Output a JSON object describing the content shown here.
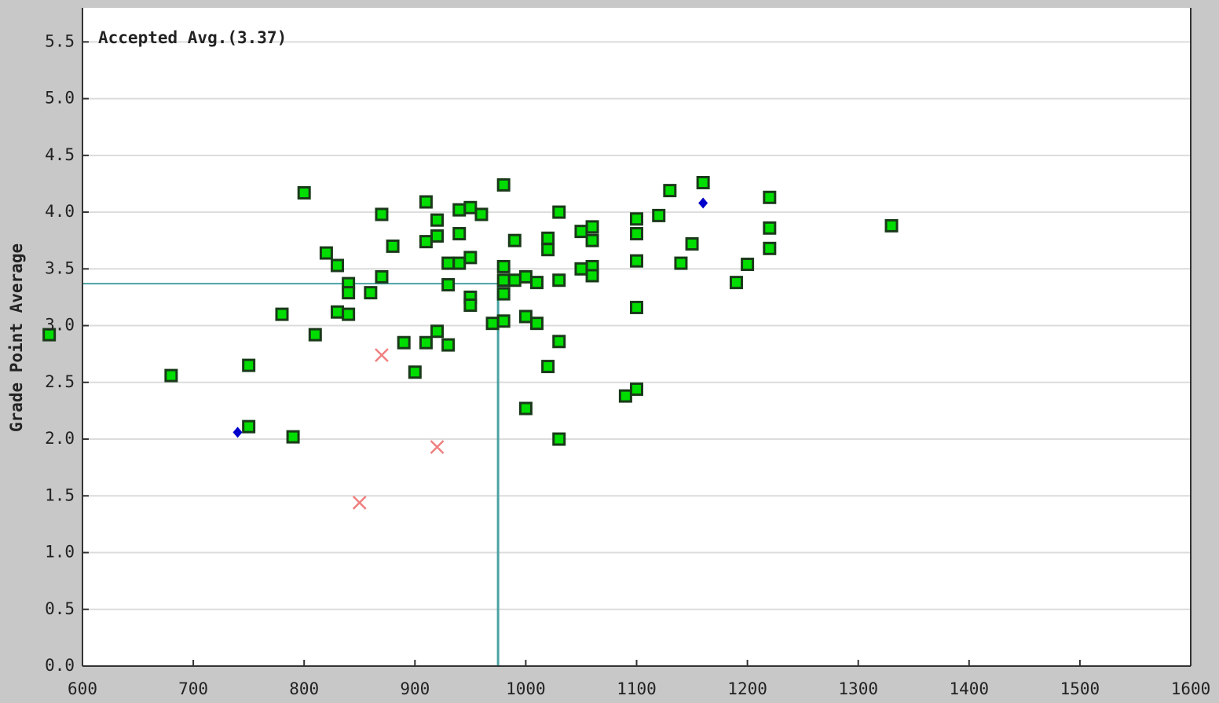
{
  "chart_data": {
    "type": "scatter",
    "y_label": "Grade Point Average",
    "annotation": "Accepted Avg.(3.37)",
    "average": {
      "x": 975,
      "y": 3.37,
      "color": "#4aa3a3"
    },
    "xlim": [
      600,
      1600
    ],
    "xticks": [
      600,
      700,
      800,
      900,
      1000,
      1100,
      1200,
      1300,
      1400,
      1500,
      1600
    ],
    "ylim": [
      0,
      5.8
    ],
    "yticks": [
      {
        "value": 0,
        "label": "0.0"
      },
      0.5,
      {
        "value": 1,
        "label": "1.0"
      },
      1.5,
      {
        "value": 2,
        "label": "2.0"
      },
      2.5,
      {
        "value": 3,
        "label": "3.0"
      },
      3.5,
      {
        "value": 4,
        "label": "4.0"
      },
      4.5,
      {
        "value": 5,
        "label": "5.0"
      },
      5.5
    ],
    "grid": true,
    "series": [
      {
        "marker": "square",
        "color": "#00dd00",
        "x": [
          570,
          680,
          750,
          750,
          790,
          780,
          800,
          810,
          820,
          830,
          830,
          840,
          840,
          840,
          860,
          870,
          870,
          880,
          890,
          900,
          910,
          910,
          910,
          920,
          920,
          920,
          930,
          930,
          930,
          940,
          940,
          940,
          950,
          950,
          950,
          950,
          960,
          970,
          980,
          980,
          980,
          980,
          980,
          990,
          990,
          1000,
          1000,
          1000,
          1010,
          1010,
          1020,
          1020,
          1020,
          1030,
          1030,
          1030,
          1030,
          1050,
          1050,
          1060,
          1060,
          1060,
          1060,
          1090,
          1100,
          1100,
          1100,
          1100,
          1100,
          1120,
          1130,
          1140,
          1150,
          1160,
          1190,
          1200,
          1220,
          1220,
          1220,
          1330
        ],
        "values": [
          2.92,
          2.56,
          2.65,
          2.11,
          2.02,
          3.1,
          4.17,
          2.92,
          3.64,
          3.53,
          3.12,
          3.37,
          3.29,
          3.1,
          3.29,
          3.98,
          3.43,
          3.7,
          2.85,
          2.59,
          4.09,
          3.74,
          2.85,
          3.93,
          3.79,
          2.95,
          3.55,
          3.36,
          2.83,
          4.02,
          3.81,
          3.55,
          4.04,
          3.6,
          3.25,
          3.18,
          3.98,
          3.02,
          4.24,
          3.52,
          3.4,
          3.28,
          3.04,
          3.75,
          3.4,
          3.43,
          3.08,
          2.27,
          3.38,
          3.02,
          3.77,
          3.67,
          2.64,
          4.0,
          3.4,
          2.86,
          2.0,
          3.83,
          3.5,
          3.87,
          3.75,
          3.52,
          3.44,
          2.38,
          3.94,
          3.81,
          3.57,
          3.16,
          2.44,
          3.97,
          4.19,
          3.55,
          3.72,
          4.26,
          3.38,
          3.54,
          4.13,
          3.86,
          3.68,
          3.88
        ]
      },
      {
        "marker": "x",
        "color": "#f08080",
        "x": [
          870,
          920,
          850
        ],
        "values": [
          2.74,
          1.93,
          1.44
        ]
      },
      {
        "marker": "diamond",
        "color": "#0000cc",
        "x": [
          740,
          1160
        ],
        "values": [
          2.06,
          4.08
        ]
      }
    ]
  }
}
